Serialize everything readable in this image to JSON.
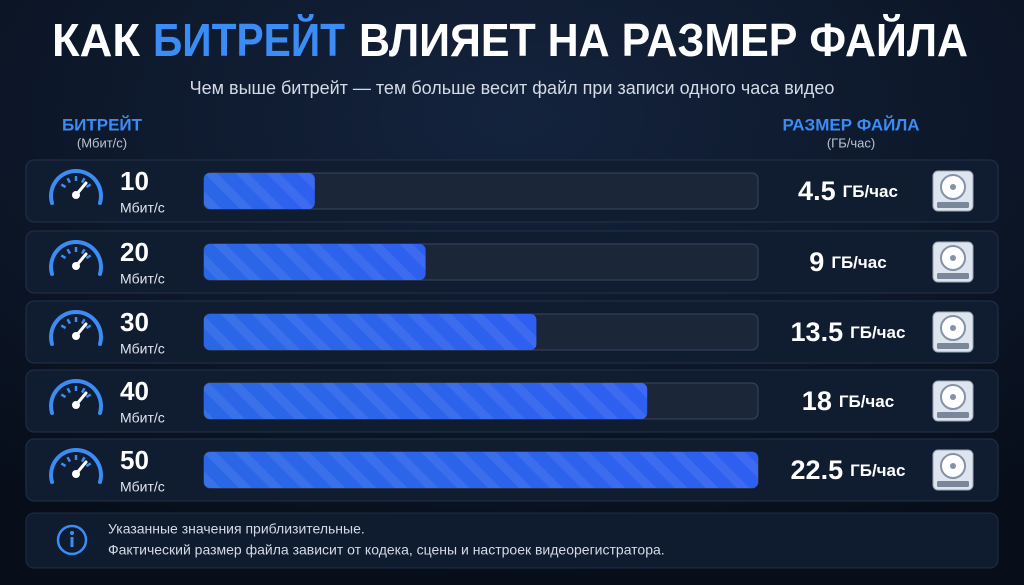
{
  "chart_data": {
    "type": "bar",
    "title": [
      "КАК",
      "БИТРЕЙТ",
      "ВЛИЯЕТ НА РАЗМЕР ФАЙЛА"
    ],
    "subtitle": "Чем выше битрейт — тем больше весит файл при записи одного часа видео",
    "category_header": "БИТРЕЙТ",
    "category_header_unit": "(Мбит/с)",
    "value_header": "РАЗМЕР ФАЙЛА",
    "value_header_unit": "(ГБ/час)",
    "categories": [
      "10",
      "20",
      "30",
      "40",
      "50"
    ],
    "category_unit": "Мбит/с",
    "values": [
      4.5,
      9,
      13.5,
      18,
      22.5
    ],
    "value_unit": "ГБ/час",
    "xlim": [
      0,
      22.5
    ],
    "color": "#2f6fe8",
    "note": [
      "Указанные значения приблизительные.",
      "Фактический размер файла зависит от кодека, сцены и настроек видеорегистратора."
    ]
  }
}
